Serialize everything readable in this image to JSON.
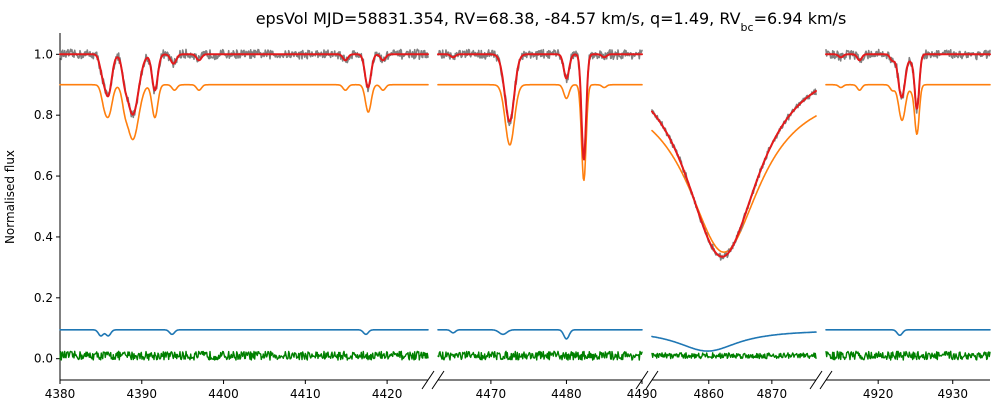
{
  "chart_data": {
    "type": "line",
    "title_main": "epsVol MJD=58831.354, RV=68.38, -84.57 km/s, q=1.49, RV",
    "title_sub": "bc",
    "title_tail": "=6.94 km/s",
    "ylabel": "Normalised flux",
    "ylim": [
      -0.07,
      1.07
    ],
    "yticks": [
      0.0,
      0.2,
      0.4,
      0.6,
      0.8,
      1.0
    ],
    "ytick_labels": [
      "0.0",
      "0.2",
      "0.4",
      "0.6",
      "0.8",
      "1.0"
    ],
    "grid": false,
    "legend": "none",
    "colors": {
      "observed": "#808080",
      "model": "#e41a1c",
      "primary": "#ff7f0e",
      "secondary": "#1f77b4",
      "residual": "#008000"
    },
    "panels": [
      {
        "xlim": [
          4380,
          4425
        ],
        "xticks": [
          4380,
          4390,
          4400,
          4410,
          4420
        ],
        "xtick_labels": [
          "4380",
          "4390",
          "4400",
          "4410",
          "4420"
        ],
        "lines": [
          {
            "center": 4385.4,
            "width": 0.35,
            "depth": 0.06,
            "star": "primary"
          },
          {
            "center": 4386.0,
            "width": 0.4,
            "depth": 0.1,
            "star": "primary"
          },
          {
            "center": 4387.9,
            "width": 0.3,
            "depth": 0.04,
            "star": "primary"
          },
          {
            "center": 4388.9,
            "width": 0.7,
            "depth": 0.2,
            "star": "primary"
          },
          {
            "center": 4391.6,
            "width": 0.35,
            "depth": 0.12,
            "star": "primary"
          },
          {
            "center": 4394.0,
            "width": 0.3,
            "depth": 0.02,
            "star": "primary"
          },
          {
            "center": 4397.0,
            "width": 0.3,
            "depth": 0.02,
            "star": "primary"
          },
          {
            "center": 4414.9,
            "width": 0.3,
            "depth": 0.02,
            "star": "primary"
          },
          {
            "center": 4417.7,
            "width": 0.35,
            "depth": 0.1,
            "star": "primary"
          },
          {
            "center": 4419.5,
            "width": 0.3,
            "depth": 0.02,
            "star": "primary"
          },
          {
            "center": 4385.0,
            "width": 0.3,
            "depth": 0.02,
            "star": "secondary"
          },
          {
            "center": 4385.9,
            "width": 0.3,
            "depth": 0.02,
            "star": "secondary"
          },
          {
            "center": 4393.7,
            "width": 0.3,
            "depth": 0.015,
            "star": "secondary"
          },
          {
            "center": 4417.4,
            "width": 0.3,
            "depth": 0.015,
            "star": "secondary"
          }
        ]
      },
      {
        "xlim": [
          4463,
          4490
        ],
        "xticks": [
          4470,
          4480,
          4490
        ],
        "xtick_labels": [
          "4470",
          "4480",
          "4490"
        ],
        "lines": [
          {
            "center": 4472.5,
            "width": 0.6,
            "depth": 0.22,
            "star": "primary"
          },
          {
            "center": 4480.0,
            "width": 0.35,
            "depth": 0.05,
            "star": "primary"
          },
          {
            "center": 4482.3,
            "width": 0.3,
            "depth": 0.35,
            "star": "primary"
          },
          {
            "center": 4485.0,
            "width": 0.3,
            "depth": 0.01,
            "star": "primary"
          },
          {
            "center": 4465.0,
            "width": 0.3,
            "depth": 0.01,
            "star": "secondary"
          },
          {
            "center": 4471.6,
            "width": 0.5,
            "depth": 0.015,
            "star": "secondary"
          },
          {
            "center": 4480.0,
            "width": 0.35,
            "depth": 0.03,
            "star": "secondary"
          }
        ]
      },
      {
        "xlim": [
          4851,
          4877
        ],
        "xticks": [
          4860,
          4870
        ],
        "xtick_labels": [
          "4860",
          "4870"
        ],
        "lines": [
          {
            "center": 4862.4,
            "width": 7.0,
            "depth": 0.55,
            "star": "primary",
            "profile": "broad"
          },
          {
            "center": 4859.8,
            "width": 6.0,
            "depth": 0.07,
            "star": "secondary",
            "profile": "broad"
          }
        ]
      },
      {
        "xlim": [
          4913,
          4935
        ],
        "xticks": [
          4920,
          4930
        ],
        "xtick_labels": [
          "4920",
          "4930"
        ],
        "lines": [
          {
            "center": 4915.0,
            "width": 0.3,
            "depth": 0.01,
            "star": "primary"
          },
          {
            "center": 4917.5,
            "width": 0.3,
            "depth": 0.02,
            "star": "primary"
          },
          {
            "center": 4921.9,
            "width": 0.3,
            "depth": 0.02,
            "star": "primary"
          },
          {
            "center": 4923.2,
            "width": 0.45,
            "depth": 0.13,
            "star": "primary"
          },
          {
            "center": 4924.5,
            "width": 0.3,
            "depth": 0.02,
            "star": "primary"
          },
          {
            "center": 4925.2,
            "width": 0.3,
            "depth": 0.18,
            "star": "primary"
          },
          {
            "center": 4922.9,
            "width": 0.35,
            "depth": 0.018,
            "star": "secondary"
          }
        ]
      }
    ]
  }
}
